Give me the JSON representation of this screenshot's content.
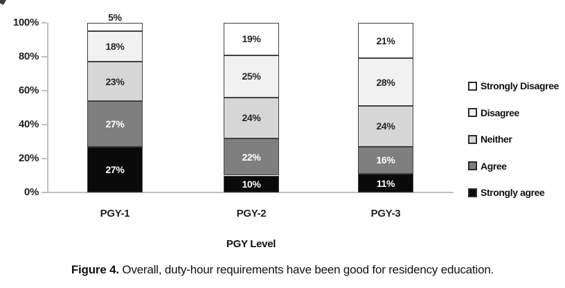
{
  "figure": {
    "caption_prefix": "Figure 4.",
    "caption_text": "Overall, duty-hour requirements have been good for residency education."
  },
  "chart_data": {
    "type": "bar",
    "stacked": true,
    "title": "",
    "xlabel": "PGY Level",
    "ylabel": "",
    "ylim": [
      0,
      100
    ],
    "yticks": [
      "0%",
      "20%",
      "40%",
      "60%",
      "80%",
      "100%"
    ],
    "grid": false,
    "legend_position": "right",
    "legend_top_to_bottom": [
      "Strongly Disagree",
      "Disagree",
      "Neither",
      "Agree",
      "Strongly agree"
    ],
    "value_suffix": "%",
    "categories": [
      "PGY-1",
      "PGY-2",
      "PGY-3"
    ],
    "series": [
      {
        "name": "Strongly agree",
        "color": "#0a0a0a",
        "label_color": "#ffffff",
        "values": [
          27,
          10,
          11
        ]
      },
      {
        "name": "Agree",
        "color": "#7f7f7f",
        "label_color": "#ffffff",
        "values": [
          27,
          22,
          16
        ]
      },
      {
        "name": "Neither",
        "color": "#d6d6d6",
        "label_color": "#262626",
        "values": [
          23,
          24,
          24
        ]
      },
      {
        "name": "Disagree",
        "color": "#f1f1f1",
        "label_color": "#262626",
        "values": [
          18,
          25,
          28
        ]
      },
      {
        "name": "Strongly Disagree",
        "color": "#ffffff",
        "label_color": "#262626",
        "values": [
          5,
          19,
          21
        ]
      }
    ],
    "outside_labels": [
      {
        "category": "PGY-1",
        "series": "Strongly Disagree",
        "value": "5%",
        "position": "above bar"
      }
    ]
  },
  "style": {
    "segment_border": "#404040",
    "axis_line": "#bfbfbf",
    "text_color": "#1f1f1f",
    "background": "#ffffff"
  }
}
